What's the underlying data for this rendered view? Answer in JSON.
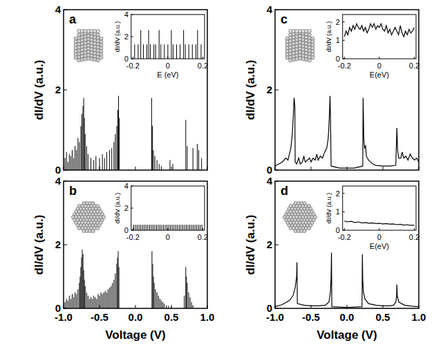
{
  "chart_data": [
    {
      "type": "stick",
      "title": "a",
      "y_label": "dI/dV (a.u.)",
      "color": "#000000",
      "xlim": [
        -1,
        1
      ],
      "ylim": [
        0,
        4
      ],
      "xticks": [
        {
          "value": -1,
          "label": "-1.0"
        },
        -0.5,
        {
          "value": 0,
          "label": "0.0"
        },
        0.5,
        {
          "value": 1,
          "label": "1.0"
        }
      ],
      "yticks": [
        0,
        2,
        4
      ],
      "tick_labels": "y",
      "x": [
        -0.98,
        -0.96,
        -0.94,
        -0.92,
        -0.9,
        -0.88,
        -0.86,
        -0.84,
        -0.82,
        -0.8,
        -0.78,
        -0.76,
        -0.745,
        -0.73,
        -0.72,
        -0.71,
        -0.7,
        -0.68,
        -0.66,
        -0.62,
        -0.58,
        -0.55,
        -0.5,
        -0.46,
        -0.43,
        -0.4,
        -0.36,
        -0.33,
        -0.3,
        -0.28,
        -0.26,
        -0.245,
        -0.235,
        -0.225,
        0.225,
        0.235,
        0.25,
        0.27,
        0.3,
        0.33,
        0.36,
        0.48,
        0.52,
        0.7,
        0.72,
        0.8,
        0.86,
        0.88,
        0.92
      ],
      "values": [
        0.3,
        0.45,
        0.2,
        0.4,
        0.35,
        0.5,
        0.3,
        0.6,
        0.5,
        0.8,
        0.7,
        1.1,
        1.4,
        1.6,
        1.8,
        1.3,
        0.9,
        0.6,
        0.4,
        0.3,
        0.25,
        0.35,
        0.3,
        0.4,
        0.3,
        0.45,
        0.5,
        0.55,
        0.7,
        0.9,
        1.1,
        1.5,
        1.85,
        1.3,
        1.8,
        1.1,
        0.5,
        0.35,
        0.25,
        0.15,
        0.1,
        0.25,
        0.15,
        1.25,
        0.6,
        0.55,
        0.65,
        0.5,
        0.3
      ]
    },
    {
      "type": "stick",
      "x_label": "E (eV)",
      "y_label": "dI/dV (a.u.)",
      "color": "#000000",
      "xlim": [
        -0.21,
        0.21
      ],
      "ylim": [
        0,
        4
      ],
      "xticks": [
        -0.2,
        0,
        0.2
      ],
      "yticks": [
        0,
        2,
        4
      ],
      "x": [
        -0.19,
        -0.17,
        -0.155,
        -0.14,
        -0.12,
        -0.11,
        -0.1,
        -0.08,
        -0.07,
        -0.05,
        -0.04,
        -0.02,
        0,
        0.02,
        0.03,
        0.05,
        0.07,
        0.09,
        0.1,
        0.12,
        0.14,
        0.16,
        0.17,
        0.19
      ],
      "values": [
        1.3,
        1.3,
        2.6,
        1.3,
        1.3,
        2.6,
        1.3,
        1.3,
        1.3,
        2.6,
        1.3,
        1.3,
        1.3,
        2.6,
        1.3,
        1.3,
        1.3,
        2.6,
        1.3,
        1.3,
        1.3,
        1.3,
        2.6,
        1.3
      ]
    },
    {
      "type": "stick",
      "title": "b",
      "x_label": "Voltage (V)",
      "y_label": "dI/dV (a.u.)",
      "color": "#000000",
      "xlim": [
        -1,
        1
      ],
      "ylim": [
        0,
        4
      ],
      "xticks": [
        {
          "value": -1,
          "label": "-1.0"
        },
        -0.5,
        {
          "value": 0,
          "label": "0.0"
        },
        0.5,
        {
          "value": 1,
          "label": "1.0"
        }
      ],
      "yticks": [
        0,
        2,
        4
      ],
      "x": [
        -0.98,
        -0.96,
        -0.94,
        -0.92,
        -0.9,
        -0.88,
        -0.86,
        -0.84,
        -0.82,
        -0.8,
        -0.78,
        -0.77,
        -0.76,
        -0.75,
        -0.74,
        -0.73,
        -0.72,
        -0.71,
        -0.7,
        -0.68,
        -0.66,
        -0.64,
        -0.62,
        -0.6,
        -0.58,
        -0.56,
        -0.54,
        -0.52,
        -0.5,
        -0.48,
        -0.46,
        -0.44,
        -0.42,
        -0.4,
        -0.38,
        -0.36,
        -0.34,
        -0.32,
        -0.3,
        -0.28,
        -0.26,
        -0.25,
        -0.24,
        -0.23,
        0.23,
        0.24,
        0.25,
        0.26,
        0.28,
        0.3,
        0.32,
        0.34,
        0.36,
        0.38,
        0.4,
        0.43,
        0.46,
        0.5,
        0.68,
        0.7,
        0.71,
        0.72,
        0.74,
        0.76,
        0.78,
        0.8
      ],
      "values": [
        0.2,
        0.3,
        0.25,
        0.4,
        0.3,
        0.45,
        0.35,
        0.5,
        0.45,
        0.6,
        0.8,
        1.0,
        1.3,
        1.6,
        1.85,
        1.7,
        1.2,
        0.9,
        0.7,
        0.5,
        0.4,
        0.3,
        0.35,
        0.3,
        0.4,
        0.35,
        0.3,
        0.45,
        0.4,
        0.5,
        0.45,
        0.5,
        0.55,
        0.5,
        0.6,
        0.65,
        0.7,
        0.8,
        0.9,
        1.1,
        1.4,
        1.6,
        1.8,
        1.3,
        1.8,
        1.4,
        1.0,
        0.8,
        0.6,
        0.5,
        0.4,
        0.3,
        0.25,
        0.2,
        0.15,
        0.1,
        0.08,
        0.05,
        0.4,
        1.3,
        1.0,
        0.8,
        0.5,
        0.35,
        0.2,
        0.1
      ]
    },
    {
      "type": "stick",
      "y_label": "dI/dV (a.u.)",
      "color": "#000000",
      "xlim": [
        -0.21,
        0.21
      ],
      "ylim": [
        0,
        4
      ],
      "xticks": [
        -0.2,
        0,
        0.2
      ],
      "yticks": [
        0,
        2,
        4
      ],
      "x": [
        -0.195,
        -0.185,
        -0.175,
        -0.165,
        -0.155,
        -0.145,
        -0.135,
        -0.125,
        -0.115,
        -0.105,
        -0.095,
        -0.085,
        -0.075,
        -0.065,
        -0.055,
        -0.045,
        -0.035,
        -0.025,
        -0.015,
        -0.005,
        0.005,
        0.015,
        0.025,
        0.035,
        0.045,
        0.055,
        0.065,
        0.075,
        0.085,
        0.095,
        0.105,
        0.115,
        0.125,
        0.135,
        0.145,
        0.155,
        0.165,
        0.175,
        0.185,
        0.195
      ],
      "values": [
        0.5,
        0.5,
        0.5,
        0.5,
        0.5,
        0.5,
        0.5,
        0.5,
        0.5,
        0.5,
        0.5,
        0.5,
        0.5,
        0.5,
        0.5,
        0.5,
        0.5,
        0.5,
        0.5,
        0.5,
        0.5,
        0.5,
        0.5,
        0.5,
        0.5,
        0.5,
        0.5,
        0.5,
        0.5,
        0.5,
        0.5,
        0.5,
        0.5,
        0.5,
        0.5,
        0.5,
        0.5,
        0.5,
        0.5,
        0.5
      ]
    },
    {
      "type": "line",
      "title": "c",
      "y_label": "dI/dV (a.u.)",
      "color": "#000000",
      "xlim": [
        -1,
        1
      ],
      "ylim": [
        0,
        4
      ],
      "xticks": [
        {
          "value": -1,
          "label": "-1.0"
        },
        -0.5,
        {
          "value": 0,
          "label": "0.0"
        },
        0.5,
        {
          "value": 1,
          "label": "1.0"
        }
      ],
      "yticks": [
        0,
        2,
        4
      ],
      "tick_labels": "y",
      "x": [
        -1,
        -0.95,
        -0.9,
        -0.85,
        -0.82,
        -0.8,
        -0.78,
        -0.76,
        -0.745,
        -0.735,
        -0.725,
        -0.72,
        -0.7,
        -0.67,
        -0.65,
        -0.62,
        -0.6,
        -0.58,
        -0.55,
        -0.52,
        -0.5,
        -0.47,
        -0.44,
        -0.42,
        -0.4,
        -0.37,
        -0.34,
        -0.31,
        -0.28,
        -0.26,
        -0.245,
        -0.235,
        -0.228,
        -0.22,
        -0.1,
        0,
        0.1,
        0.22,
        0.225,
        0.235,
        0.245,
        0.26,
        0.27,
        0.3,
        0.33,
        0.36,
        0.4,
        0.5,
        0.6,
        0.68,
        0.695,
        0.705,
        0.72,
        0.75,
        0.77,
        0.79,
        0.82,
        0.85,
        0.88,
        0.91,
        0.94,
        0.97,
        1
      ],
      "values": [
        0.1,
        0.15,
        0.2,
        0.3,
        0.25,
        0.4,
        0.55,
        0.9,
        1.4,
        1.8,
        1.6,
        0.2,
        0.15,
        0.3,
        0.15,
        0.2,
        0.35,
        0.2,
        0.25,
        0.3,
        0.2,
        0.3,
        0.25,
        0.4,
        0.25,
        0.35,
        0.3,
        0.45,
        0.55,
        0.8,
        1.3,
        1.85,
        1.2,
        0.1,
        0.05,
        0.05,
        0.05,
        0.1,
        1.8,
        0.8,
        0.55,
        0.6,
        0.35,
        0.25,
        0.2,
        0.15,
        0.12,
        0.1,
        0.1,
        0.12,
        1.05,
        0.5,
        0.3,
        0.3,
        0.45,
        0.3,
        0.35,
        0.25,
        0.4,
        0.3,
        0.25,
        0.3,
        0.2
      ]
    },
    {
      "type": "line",
      "x_label": "E(eV)",
      "y_label": "dI/dV (a.u.)",
      "color": "#000000",
      "xlim": [
        -0.21,
        0.21
      ],
      "ylim": [
        0,
        2.4
      ],
      "xticks": [
        -0.2,
        0,
        0.2
      ],
      "yticks": [
        0,
        1,
        2
      ],
      "x": [
        -0.2,
        -0.19,
        -0.18,
        -0.17,
        -0.16,
        -0.15,
        -0.14,
        -0.13,
        -0.12,
        -0.11,
        -0.1,
        -0.09,
        -0.08,
        -0.07,
        -0.06,
        -0.05,
        -0.04,
        -0.03,
        -0.02,
        -0.01,
        0,
        0.01,
        0.02,
        0.03,
        0.04,
        0.05,
        0.06,
        0.07,
        0.08,
        0.09,
        0.1,
        0.11,
        0.12,
        0.13,
        0.14,
        0.15,
        0.16,
        0.17,
        0.18,
        0.19,
        0.2
      ],
      "values": [
        1.2,
        1.5,
        1.3,
        1.7,
        1.5,
        1.8,
        1.6,
        1.9,
        1.7,
        1.6,
        1.8,
        1.5,
        1.7,
        1.4,
        1.6,
        1.9,
        1.7,
        1.9,
        1.6,
        1.8,
        1.7,
        1.9,
        1.6,
        1.5,
        1.8,
        1.4,
        1.6,
        1.3,
        1.5,
        1.7,
        1.5,
        1.3,
        1.8,
        1.4,
        1.2,
        1.5,
        1.3,
        1.6,
        1.4,
        1.5,
        1.7
      ]
    },
    {
      "type": "line",
      "title": "d",
      "x_label": "Voltage (V)",
      "y_label": "dI/dV (a.u.)",
      "color": "#000000",
      "xlim": [
        -1,
        1
      ],
      "ylim": [
        0,
        4
      ],
      "xticks": [
        {
          "value": -1,
          "label": "-1.0"
        },
        -0.5,
        {
          "value": 0,
          "label": "0.0"
        },
        0.5,
        {
          "value": 1,
          "label": "1.0"
        }
      ],
      "yticks": [
        0,
        2,
        4
      ],
      "x": [
        -1,
        -0.9,
        -0.8,
        -0.75,
        -0.72,
        -0.7,
        -0.695,
        -0.69,
        -0.6,
        -0.5,
        -0.4,
        -0.3,
        -0.25,
        -0.23,
        -0.22,
        -0.215,
        -0.21,
        0,
        0.21,
        0.215,
        0.22,
        0.23,
        0.25,
        0.3,
        0.4,
        0.5,
        0.6,
        0.65,
        0.68,
        0.69,
        0.695,
        0.7,
        0.72,
        0.8,
        0.9,
        1
      ],
      "values": [
        0.05,
        0.12,
        0.25,
        0.4,
        0.65,
        1.0,
        1.45,
        0.15,
        0.1,
        0.08,
        0.08,
        0.1,
        0.2,
        0.5,
        1.0,
        1.75,
        0.05,
        0.03,
        0.05,
        1.7,
        0.9,
        0.5,
        0.3,
        0.15,
        0.1,
        0.08,
        0.08,
        0.1,
        0.2,
        0.35,
        0.75,
        0.4,
        0.2,
        0.1,
        0.07,
        0.05
      ]
    },
    {
      "type": "line",
      "x_label": "E(eV)",
      "y_label": "dI/dV (a.u.)",
      "color": "#000000",
      "xlim": [
        -0.21,
        0.21
      ],
      "ylim": [
        0,
        2.4
      ],
      "xticks": [
        -0.2,
        0,
        0.2
      ],
      "yticks": [
        0,
        1,
        2
      ],
      "x": [
        -0.2,
        -0.18,
        -0.16,
        -0.14,
        -0.12,
        -0.1,
        -0.08,
        -0.06,
        -0.04,
        -0.02,
        0,
        0.02,
        0.04,
        0.06,
        0.08,
        0.1,
        0.12,
        0.14,
        0.16,
        0.18,
        0.2
      ],
      "values": [
        0.5,
        0.45,
        0.48,
        0.42,
        0.45,
        0.4,
        0.42,
        0.38,
        0.4,
        0.36,
        0.38,
        0.34,
        0.36,
        0.33,
        0.34,
        0.3,
        0.32,
        0.28,
        0.3,
        0.27,
        0.28
      ]
    }
  ]
}
